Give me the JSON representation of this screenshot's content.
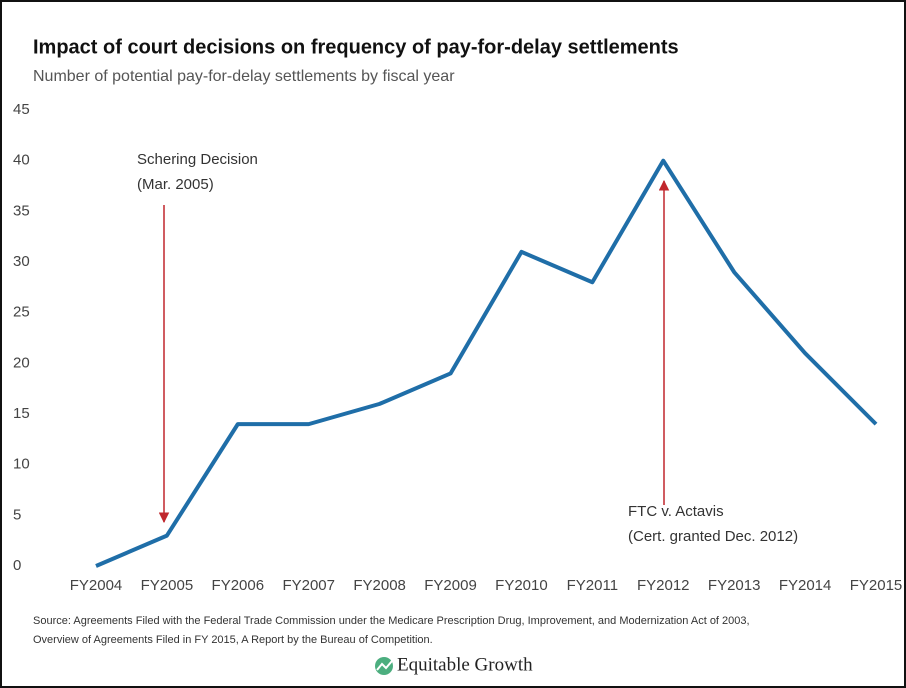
{
  "chart_data": {
    "type": "line",
    "title": "Impact of court decisions on frequency of pay-for-delay settlements",
    "subtitle": "Number of potential pay-for-delay settlements by fiscal year",
    "categories": [
      "FY2004",
      "FY2005",
      "FY2006",
      "FY2007",
      "FY2008",
      "FY2009",
      "FY2010",
      "FY2011",
      "FY2012",
      "FY2013",
      "FY2014",
      "FY2015"
    ],
    "values": [
      0,
      3,
      14,
      14,
      16,
      19,
      31,
      28,
      40,
      29,
      21,
      14
    ],
    "color": "#1f6ea8",
    "ylim": [
      0,
      45
    ],
    "yticks": [
      0,
      5,
      10,
      15,
      20,
      25,
      30,
      35,
      40,
      45
    ],
    "grid": false,
    "annotations": [
      {
        "lines": [
          "Schering Decision",
          "(Mar. 2005)"
        ]
      },
      {
        "lines": [
          "FTC v. Actavis",
          "(Cert. granted Dec. 2012)"
        ]
      }
    ],
    "source": [
      "Source: Agreements Filed with the Federal Trade Commission under the Medicare Prescription Drug, Improvement, and Modernization Act of 2003,",
      "Overview of Agreements Filed in FY 2015, A Report by the Bureau of Competition."
    ],
    "logo": "Equitable Growth"
  }
}
